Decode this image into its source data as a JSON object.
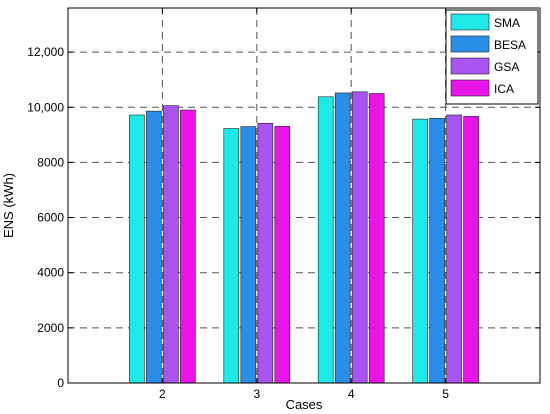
{
  "chart_data": {
    "type": "bar",
    "xlabel": "Cases",
    "ylabel": "ENS (kWh)",
    "categories": [
      "2",
      "3",
      "4",
      "5"
    ],
    "ylim": [
      0,
      13600
    ],
    "yticks": [
      0,
      2000,
      4000,
      6000,
      8000,
      10000,
      12000
    ],
    "ytick_labels": [
      "0",
      "2000",
      "4000",
      "6000",
      "8000",
      "10,000",
      "12,000"
    ],
    "grid": true,
    "legend_position": "top-right",
    "series": [
      {
        "name": "SMA",
        "color": "#1fe8e8",
        "values": [
          9720,
          9230,
          10380,
          9570
        ]
      },
      {
        "name": "BESA",
        "color": "#2a8ee6",
        "values": [
          9860,
          9300,
          10520,
          9600
        ]
      },
      {
        "name": "GSA",
        "color": "#a855ef",
        "values": [
          10060,
          9420,
          10560,
          9720
        ]
      },
      {
        "name": "ICA",
        "color": "#e814e8",
        "values": [
          9900,
          9310,
          10500,
          9670
        ]
      }
    ]
  }
}
